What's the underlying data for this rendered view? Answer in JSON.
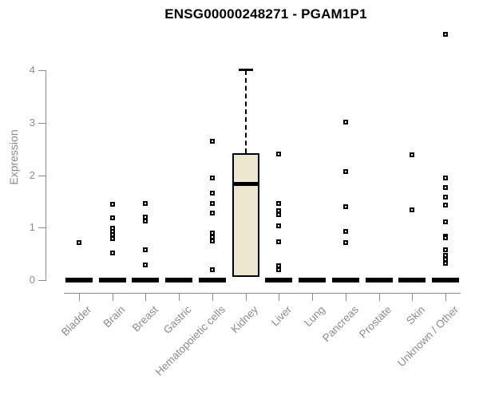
{
  "title": "ENSG00000248271 - PGAM1P1",
  "chart_data": {
    "type": "boxplot",
    "title": "ENSG00000248271 - PGAM1P1",
    "xlabel": "",
    "ylabel": "Expression",
    "axis_range_y": [
      0,
      4
    ],
    "yticks": [
      0,
      1,
      2,
      3,
      4
    ],
    "grid": false,
    "legend": "none",
    "point_marker": "open-square",
    "categories": [
      "Bladder",
      "Brain",
      "Breast",
      "Gastric",
      "Hematopoietic cells",
      "Kidney",
      "Liver",
      "Lung",
      "Pancreas",
      "Prostate",
      "Skin",
      "Unknown / Other"
    ],
    "boxes": [
      {
        "category": "Bladder",
        "q1": 0,
        "median": 0,
        "q3": 0,
        "whisker_low": 0,
        "whisker_high": 0,
        "outliers": [
          0.72
        ]
      },
      {
        "category": "Brain",
        "q1": 0,
        "median": 0,
        "q3": 0,
        "whisker_low": 0,
        "whisker_high": 0,
        "outliers": [
          1.44,
          1.19,
          0.99,
          0.93,
          0.87,
          0.79,
          0.52
        ]
      },
      {
        "category": "Breast",
        "q1": 0,
        "median": 0,
        "q3": 0,
        "whisker_low": 0,
        "whisker_high": 0,
        "outliers": [
          1.46,
          1.2,
          1.13,
          0.58,
          0.29
        ]
      },
      {
        "category": "Gastric",
        "q1": 0,
        "median": 0,
        "q3": 0,
        "whisker_low": 0,
        "whisker_high": 0,
        "outliers": []
      },
      {
        "category": "Hematopoietic cells",
        "q1": 0,
        "median": 0,
        "q3": 0,
        "whisker_low": 0,
        "whisker_high": 0,
        "outliers": [
          2.65,
          1.95,
          1.66,
          1.46,
          1.28,
          0.9,
          0.82,
          0.74,
          0.2
        ]
      },
      {
        "category": "Kidney",
        "q1": 0.06,
        "median": 1.84,
        "q3": 2.42,
        "whisker_low": 0.06,
        "whisker_high": 4.0,
        "outliers": []
      },
      {
        "category": "Liver",
        "q1": 0,
        "median": 0,
        "q3": 0,
        "whisker_low": 0,
        "whisker_high": 0,
        "outliers": [
          2.4,
          1.46,
          1.32,
          1.25,
          1.03,
          0.73,
          0.27,
          0.2
        ]
      },
      {
        "category": "Lung",
        "q1": 0,
        "median": 0,
        "q3": 0,
        "whisker_low": 0,
        "whisker_high": 0,
        "outliers": []
      },
      {
        "category": "Pancreas",
        "q1": 0,
        "median": 0,
        "q3": 0,
        "whisker_low": 0,
        "whisker_high": 0,
        "outliers": [
          3.01,
          2.07,
          1.4,
          0.93,
          0.71
        ]
      },
      {
        "category": "Prostate",
        "q1": 0,
        "median": 0,
        "q3": 0,
        "whisker_low": 0,
        "whisker_high": 0,
        "outliers": []
      },
      {
        "category": "Skin",
        "q1": 0,
        "median": 0,
        "q3": 0,
        "whisker_low": 0,
        "whisker_high": 0,
        "outliers": [
          2.39,
          1.34
        ]
      },
      {
        "category": "Unknown / Other",
        "q1": 0,
        "median": 0,
        "q3": 0,
        "whisker_low": 0,
        "whisker_high": 0,
        "outliers": [
          4.68,
          1.95,
          1.76,
          1.58,
          1.43,
          1.11,
          0.84,
          0.8,
          0.58,
          0.47,
          0.4,
          0.32
        ]
      }
    ],
    "colors": {
      "box_fill": "#ece8d0",
      "box_border": "#000000",
      "median": "#000000",
      "points": "#000000",
      "axis": "#8b8b8b",
      "tick_text": "#8b8b8b",
      "title_text": "#000000",
      "background": "#ffffff"
    }
  }
}
